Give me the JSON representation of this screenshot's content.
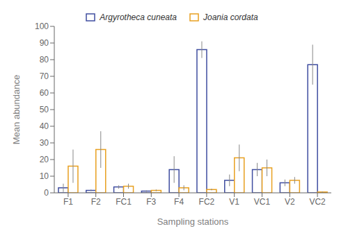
{
  "chart_data": {
    "type": "bar",
    "categories": [
      "F1",
      "F2",
      "FC1",
      "F3",
      "F4",
      "FC2",
      "V1",
      "VC1",
      "V2",
      "VC2"
    ],
    "series": [
      {
        "name": "Argyrotheca cuneata",
        "color": "#3F4DA0",
        "values": [
          3,
          1.5,
          3.5,
          1,
          14,
          86,
          7.5,
          14,
          6,
          77
        ],
        "errors": [
          2.5,
          0.5,
          1,
          0.5,
          8,
          5,
          3.5,
          4,
          2,
          12
        ]
      },
      {
        "name": "Joania cordata",
        "color": "#E8A020",
        "values": [
          16,
          26,
          4,
          1.5,
          3,
          2,
          21,
          15,
          7.5,
          0.5
        ],
        "errors": [
          10,
          11,
          1.5,
          0.5,
          1.5,
          0.5,
          8,
          5,
          2,
          0.3
        ]
      }
    ],
    "xlabel": "Sampling stations",
    "ylabel": "Mean abundance",
    "ylim": [
      0,
      100
    ],
    "yticks": [
      0,
      10,
      20,
      30,
      40,
      50,
      60,
      70,
      80,
      90,
      100
    ],
    "grid": false,
    "legend": "top"
  }
}
